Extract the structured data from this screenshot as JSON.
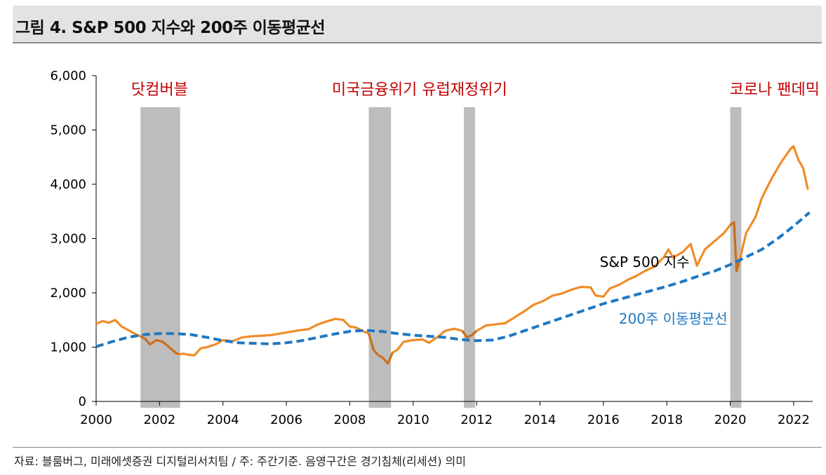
{
  "header": {
    "title": "그림 4. S&P 500 지수와 200주 이동평균선"
  },
  "footer": {
    "source": "자료: 블룸버그, 미래에셋증권 디지털리서치팀 / 주: 주간기준. 음영구간은 경기침체(리세션) 의미"
  },
  "colors": {
    "sp500": "#f08c28",
    "sp500_recession": "#c8701e",
    "ma200": "#1f78c1",
    "shade": "#bdbdbd",
    "event_text": "#c00000"
  },
  "chart_data": {
    "type": "line",
    "xlim": [
      2000,
      2022.6
    ],
    "ylim": [
      0,
      6000
    ],
    "y_ticks": [
      0,
      1000,
      2000,
      3000,
      4000,
      5000,
      6000
    ],
    "y_tick_labels": [
      "0",
      "1,000",
      "2,000",
      "3,000",
      "4,000",
      "5,000",
      "6,000"
    ],
    "x_ticks": [
      2000,
      2002,
      2004,
      2006,
      2008,
      2010,
      2012,
      2014,
      2016,
      2018,
      2020,
      2022
    ],
    "x_tick_labels": [
      "2000",
      "2002",
      "2004",
      "2006",
      "2008",
      "2010",
      "2012",
      "2014",
      "2016",
      "2018",
      "2020",
      "2022"
    ],
    "recessions": [
      {
        "start": 2001.4,
        "end": 2002.65
      },
      {
        "start": 2008.6,
        "end": 2009.3
      },
      {
        "start": 2011.6,
        "end": 2011.95
      },
      {
        "start": 2020.0,
        "end": 2020.35
      }
    ],
    "annotations": [
      {
        "text": "닷컴버블",
        "x": 2002.0,
        "y": 5650
      },
      {
        "text": "미국금융위기 유럽재정위기",
        "x": 2010.2,
        "y": 5650
      },
      {
        "text": "코로나 팬데믹",
        "x": 2021.4,
        "y": 5650
      }
    ],
    "series": [
      {
        "name": "S&P 500 지수",
        "label_pos": {
          "x": 2017.3,
          "y": 2480
        },
        "x": [
          2000.0,
          2000.2,
          2000.4,
          2000.6,
          2000.8,
          2001.0,
          2001.2,
          2001.4,
          2001.55,
          2001.7,
          2001.9,
          2002.1,
          2002.3,
          2002.5,
          2002.6,
          2002.75,
          2002.9,
          2003.1,
          2003.3,
          2003.5,
          2003.8,
          2004.0,
          2004.3,
          2004.6,
          2004.9,
          2005.2,
          2005.5,
          2005.8,
          2006.1,
          2006.4,
          2006.7,
          2007.0,
          2007.3,
          2007.55,
          2007.8,
          2008.0,
          2008.2,
          2008.4,
          2008.6,
          2008.75,
          2008.9,
          2009.05,
          2009.2,
          2009.35,
          2009.5,
          2009.7,
          2010.0,
          2010.3,
          2010.5,
          2010.8,
          2011.0,
          2011.3,
          2011.55,
          2011.7,
          2011.85,
          2012.0,
          2012.3,
          2012.6,
          2012.9,
          2013.2,
          2013.5,
          2013.8,
          2014.1,
          2014.4,
          2014.7,
          2015.0,
          2015.3,
          2015.6,
          2015.75,
          2016.0,
          2016.2,
          2016.5,
          2016.8,
          2017.0,
          2017.3,
          2017.6,
          2017.9,
          2018.05,
          2018.2,
          2018.5,
          2018.75,
          2018.95,
          2019.2,
          2019.5,
          2019.8,
          2020.0,
          2020.12,
          2020.2,
          2020.3,
          2020.5,
          2020.8,
          2021.0,
          2021.3,
          2021.6,
          2021.9,
          2022.0,
          2022.15,
          2022.3,
          2022.45
        ],
        "y": [
          1430,
          1480,
          1450,
          1500,
          1380,
          1320,
          1250,
          1200,
          1150,
          1050,
          1130,
          1100,
          1000,
          900,
          870,
          880,
          860,
          850,
          980,
          1000,
          1060,
          1130,
          1110,
          1180,
          1200,
          1210,
          1220,
          1250,
          1280,
          1310,
          1330,
          1420,
          1480,
          1520,
          1500,
          1380,
          1360,
          1300,
          1250,
          950,
          850,
          800,
          700,
          900,
          950,
          1100,
          1130,
          1140,
          1080,
          1200,
          1300,
          1340,
          1300,
          1180,
          1220,
          1300,
          1400,
          1420,
          1440,
          1550,
          1660,
          1780,
          1850,
          1950,
          1990,
          2060,
          2110,
          2100,
          1950,
          1930,
          2080,
          2150,
          2250,
          2300,
          2400,
          2480,
          2650,
          2800,
          2650,
          2750,
          2900,
          2500,
          2800,
          2950,
          3100,
          3250,
          3300,
          2400,
          2600,
          3100,
          3400,
          3750,
          4100,
          4400,
          4650,
          4700,
          4450,
          4300,
          3900
        ]
      },
      {
        "name": "200주 이동평균선",
        "label_pos": {
          "x": 2018.2,
          "y": 1430
        },
        "x": [
          2000.0,
          2000.5,
          2001.0,
          2001.5,
          2002.0,
          2002.5,
          2003.0,
          2003.5,
          2004.0,
          2004.5,
          2005.0,
          2005.5,
          2006.0,
          2006.5,
          2007.0,
          2007.5,
          2008.0,
          2008.5,
          2009.0,
          2009.5,
          2010.0,
          2010.5,
          2011.0,
          2011.5,
          2012.0,
          2012.5,
          2013.0,
          2013.5,
          2014.0,
          2014.5,
          2015.0,
          2015.5,
          2016.0,
          2016.5,
          2017.0,
          2017.5,
          2018.0,
          2018.5,
          2019.0,
          2019.5,
          2020.0,
          2020.5,
          2021.0,
          2021.5,
          2022.0,
          2022.5
        ],
        "y": [
          1010,
          1100,
          1180,
          1230,
          1250,
          1250,
          1230,
          1180,
          1120,
          1080,
          1070,
          1060,
          1080,
          1120,
          1180,
          1240,
          1290,
          1310,
          1290,
          1250,
          1220,
          1200,
          1180,
          1140,
          1120,
          1130,
          1200,
          1300,
          1400,
          1500,
          1600,
          1700,
          1800,
          1880,
          1960,
          2040,
          2120,
          2210,
          2310,
          2400,
          2520,
          2660,
          2800,
          3000,
          3230,
          3480
        ]
      }
    ]
  }
}
